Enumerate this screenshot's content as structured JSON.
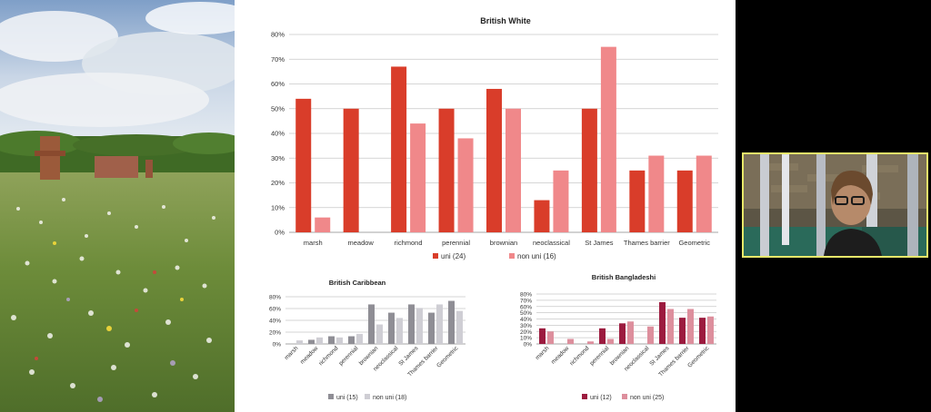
{
  "colors": {
    "white_uni": "#d93d2a",
    "white_non_uni": "#f0888a",
    "caribbean_uni": "#8f8e95",
    "caribbean_non_uni": "#cfced4",
    "bangladeshi_uni": "#9c1b3f",
    "bangladeshi_non_uni": "#dd8f9d",
    "camera_border": "#e8e86a"
  },
  "photo": {
    "name": "meadow-landscape-photo"
  },
  "camera": {
    "name": "presenter-video-feed"
  },
  "chart_data": [
    {
      "type": "bar",
      "title": "British White",
      "categories": [
        "marsh",
        "meadow",
        "richmond",
        "perennial",
        "brownian",
        "neoclassical",
        "St James",
        "Thames barrier",
        "Geometric"
      ],
      "series": [
        {
          "name": "uni (24)",
          "values": [
            54,
            50,
            67,
            50,
            58,
            13,
            50,
            25,
            25
          ]
        },
        {
          "name": "non uni (16)",
          "values": [
            6,
            0,
            44,
            38,
            50,
            25,
            75,
            31,
            31
          ]
        }
      ],
      "ylim": [
        0,
        80
      ],
      "yticks": [
        "0%",
        "10%",
        "20%",
        "30%",
        "40%",
        "50%",
        "60%",
        "70%",
        "80%"
      ],
      "grid": true,
      "legend": "bottom"
    },
    {
      "type": "bar",
      "title": "British Caribbean",
      "categories": [
        "marsh",
        "meadow",
        "richmond",
        "perennial",
        "brownian",
        "neoclassical",
        "St James",
        "Thames barrier",
        "Geometric"
      ],
      "series": [
        {
          "name": "uni (15)",
          "values": [
            0,
            7,
            13,
            13,
            67,
            53,
            67,
            53,
            73
          ]
        },
        {
          "name": "non uni (18)",
          "values": [
            6,
            11,
            11,
            17,
            33,
            44,
            61,
            67,
            56
          ]
        }
      ],
      "ylim": [
        0,
        80
      ],
      "yticks": [
        "0%",
        "20%",
        "40%",
        "60%",
        "80%"
      ],
      "grid": true,
      "legend": "bottom"
    },
    {
      "type": "bar",
      "title": "British Bangladeshi",
      "categories": [
        "marsh",
        "meadow",
        "richmond",
        "perennial",
        "brownian",
        "neoclassical",
        "St James",
        "Thames barrier",
        "Geometric"
      ],
      "series": [
        {
          "name": "uni (12)",
          "values": [
            25,
            0,
            0,
            25,
            33,
            0,
            67,
            42,
            42
          ]
        },
        {
          "name": "non uni (25)",
          "values": [
            20,
            8,
            4,
            8,
            36,
            28,
            56,
            56,
            44
          ]
        }
      ],
      "ylim": [
        0,
        80
      ],
      "yticks": [
        "0%",
        "10%",
        "20%",
        "30%",
        "40%",
        "50%",
        "60%",
        "70%",
        "80%"
      ],
      "grid": true,
      "legend": "bottom"
    }
  ]
}
